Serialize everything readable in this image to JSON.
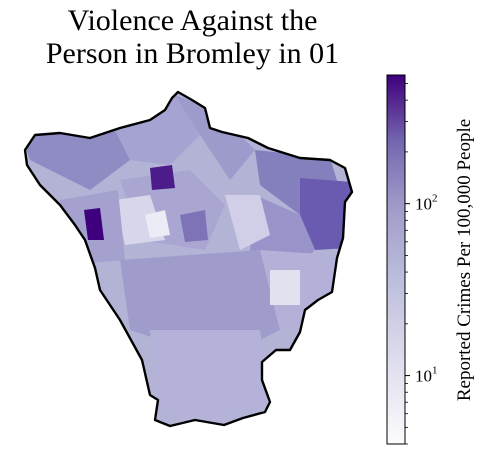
{
  "title": {
    "line1": "Violence Against the",
    "line2": "Person in Bromley in 01"
  },
  "map": {
    "area": "Bromley",
    "colormap": "Purples",
    "border_color": "#000000"
  },
  "colorbar": {
    "label": "Reported Crimes Per 100,000 People",
    "scale": "log",
    "range": [
      4,
      560
    ],
    "ticks": [
      {
        "value": 10,
        "base": "10",
        "exp": "1"
      },
      {
        "value": 100,
        "base": "10",
        "exp": "2"
      }
    ],
    "colors": [
      "#fcfbfd",
      "#dadaeb",
      "#bcbddc",
      "#9e9ac8",
      "#807dba",
      "#6a51a3",
      "#54278f",
      "#3f007d"
    ]
  }
}
